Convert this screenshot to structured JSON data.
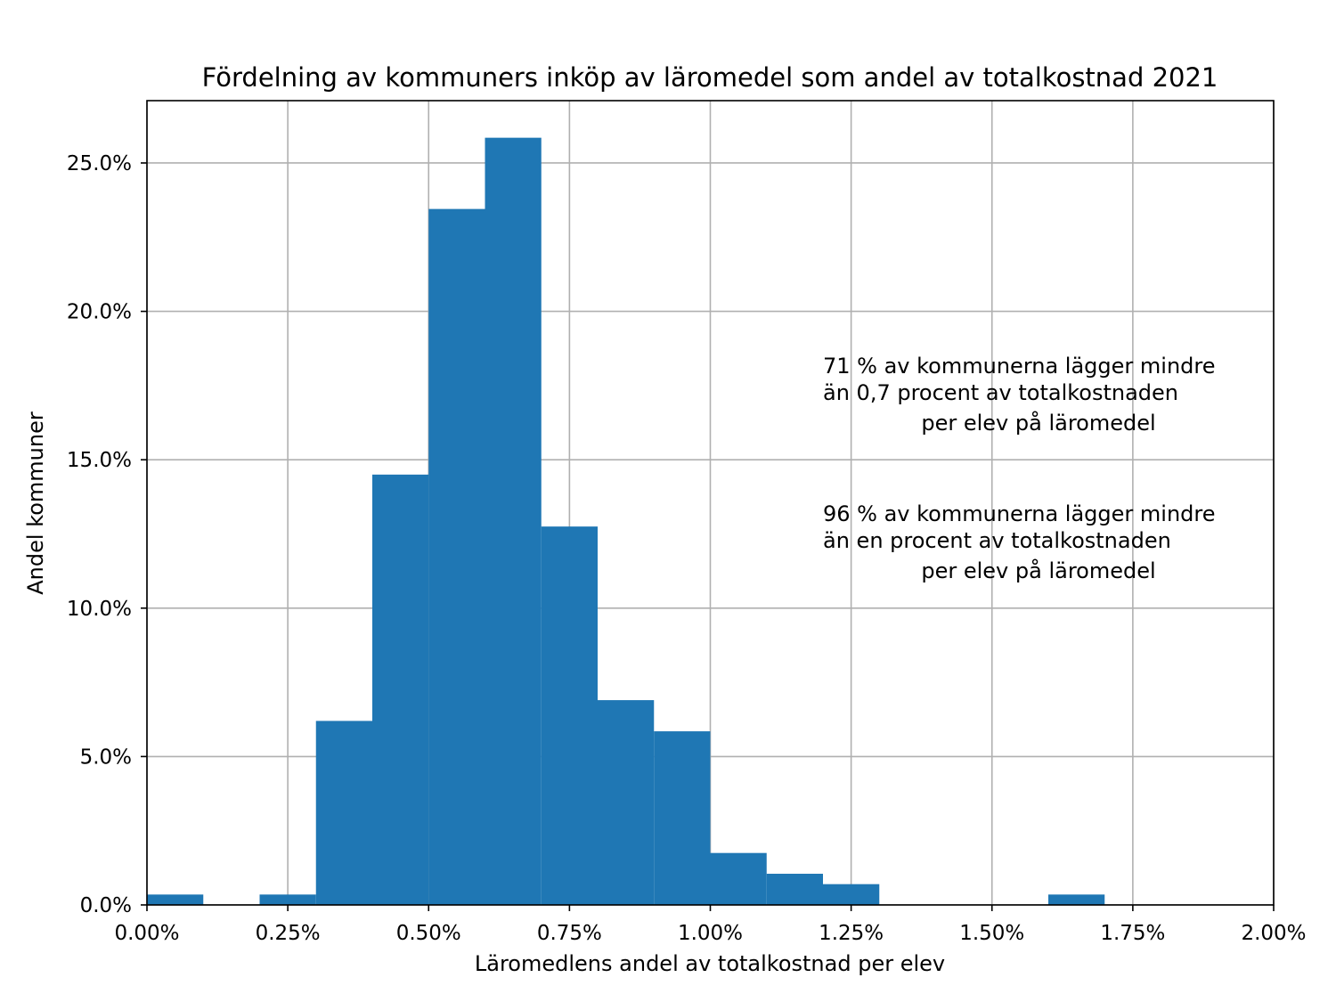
{
  "chart_data": {
    "type": "bar",
    "title": "Fördelning av kommuners inköp av läromedel som andel av totalkostnad 2021",
    "xlabel": "Läromedlens andel av totalkostnad per elev",
    "ylabel": "Andel kommuner",
    "xlim": [
      0.0,
      2.0
    ],
    "ylim": [
      0.0,
      27.1
    ],
    "xticks": [
      0.0,
      0.25,
      0.5,
      0.75,
      1.0,
      1.25,
      1.5,
      1.75,
      2.0
    ],
    "xtick_labels": [
      "0.00%",
      "0.25%",
      "0.50%",
      "0.75%",
      "1.00%",
      "1.25%",
      "1.50%",
      "1.75%",
      "2.00%"
    ],
    "yticks": [
      0.0,
      5.0,
      10.0,
      15.0,
      20.0,
      25.0
    ],
    "ytick_labels": [
      "0.0%",
      "5.0%",
      "10.0%",
      "15.0%",
      "20.0%",
      "25.0%"
    ],
    "grid": true,
    "bar_color": "#1f77b4",
    "bins": [
      {
        "start": 0.0,
        "end": 0.1,
        "value": 0.35
      },
      {
        "start": 0.1,
        "end": 0.2,
        "value": 0.0
      },
      {
        "start": 0.2,
        "end": 0.3,
        "value": 0.35
      },
      {
        "start": 0.3,
        "end": 0.4,
        "value": 6.2
      },
      {
        "start": 0.4,
        "end": 0.5,
        "value": 14.5
      },
      {
        "start": 0.5,
        "end": 0.6,
        "value": 23.45
      },
      {
        "start": 0.6,
        "end": 0.7,
        "value": 25.85
      },
      {
        "start": 0.7,
        "end": 0.8,
        "value": 12.75
      },
      {
        "start": 0.8,
        "end": 0.9,
        "value": 6.9
      },
      {
        "start": 0.9,
        "end": 1.0,
        "value": 5.85
      },
      {
        "start": 1.0,
        "end": 1.1,
        "value": 1.75
      },
      {
        "start": 1.1,
        "end": 1.2,
        "value": 1.05
      },
      {
        "start": 1.2,
        "end": 1.3,
        "value": 0.7
      },
      {
        "start": 1.3,
        "end": 1.4,
        "value": 0.0
      },
      {
        "start": 1.4,
        "end": 1.5,
        "value": 0.0
      },
      {
        "start": 1.5,
        "end": 1.6,
        "value": 0.0
      },
      {
        "start": 1.6,
        "end": 1.7,
        "value": 0.35
      }
    ],
    "annotations": [
      {
        "lines": [
          "71 % av kommunerna lägger mindre",
          "än 0,7 procent av totalkostnaden",
          "per elev på läromedel"
        ]
      },
      {
        "lines": [
          "96 % av kommunerna lägger mindre",
          "än en procent av totalkostnaden",
          "per elev på läromedel"
        ]
      }
    ]
  }
}
